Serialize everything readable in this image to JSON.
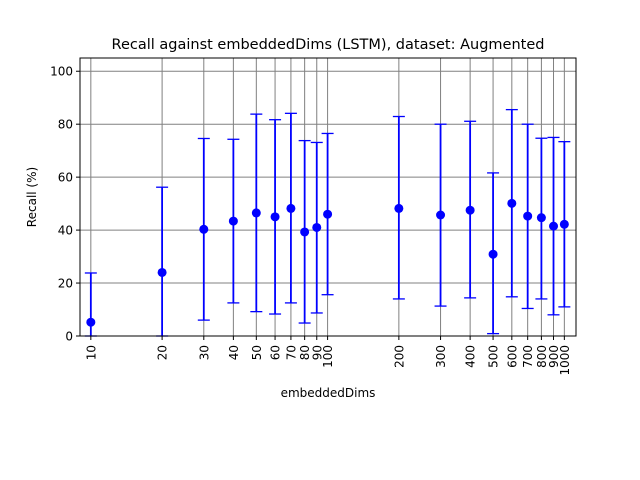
{
  "chart_data": {
    "type": "scatter",
    "title": "Recall against embeddedDims (LSTM), dataset: Augmented",
    "xlabel": "embeddedDims",
    "ylabel": "Recall (%)",
    "xscale": "log",
    "xlim": [
      9.0,
      1120
    ],
    "ylim": [
      0,
      105
    ],
    "grid": true,
    "marker_color": "#0000ff",
    "grid_color": "#808080",
    "x_ticks": [
      10,
      20,
      30,
      40,
      50,
      60,
      70,
      80,
      90,
      100,
      200,
      300,
      400,
      500,
      600,
      700,
      800,
      900,
      1000
    ],
    "x_tick_labels": [
      "10",
      "20",
      "30",
      "40",
      "50",
      "60",
      "70",
      "80",
      "90",
      "100",
      "200",
      "300",
      "400",
      "500",
      "600",
      "700",
      "800",
      "900",
      "1000"
    ],
    "y_ticks": [
      0,
      20,
      40,
      60,
      80,
      100
    ],
    "y_tick_labels": [
      "0",
      "20",
      "40",
      "60",
      "80",
      "100"
    ],
    "series": [
      {
        "x": [
          10,
          20,
          30,
          40,
          50,
          60,
          70,
          80,
          90,
          100,
          200,
          300,
          400,
          500,
          600,
          700,
          800,
          900,
          1000
        ],
        "y": [
          5.2,
          24.0,
          40.3,
          43.4,
          46.5,
          45.0,
          48.2,
          39.3,
          41.0,
          46.0,
          48.2,
          45.7,
          47.5,
          30.9,
          50.1,
          45.3,
          44.7,
          41.5,
          42.2
        ],
        "lower": [
          0,
          0,
          6.0,
          12.5,
          9.2,
          8.3,
          12.5,
          4.9,
          8.7,
          15.6,
          14.0,
          11.3,
          14.4,
          0.9,
          14.8,
          10.4,
          14.0,
          8.0,
          11.0
        ],
        "upper": [
          23.8,
          56.2,
          74.6,
          74.3,
          83.8,
          81.7,
          84.1,
          73.8,
          73.1,
          76.5,
          82.9,
          80.0,
          81.1,
          61.6,
          85.5,
          80.0,
          74.7,
          75.0,
          73.4
        ]
      }
    ]
  }
}
